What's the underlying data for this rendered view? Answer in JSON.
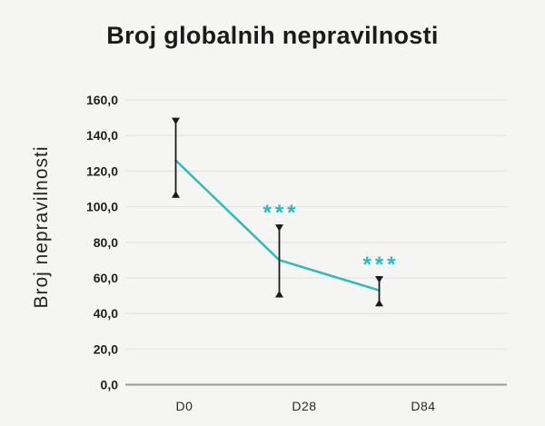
{
  "page": {
    "title": "Broj globalnih nepravilnosti"
  },
  "chart_data": {
    "type": "line",
    "title": "Broj globalnih nepravilnosti",
    "xlabel": "",
    "ylabel": "Broj nepravilnosti",
    "categories": [
      "D0",
      "D28",
      "D84"
    ],
    "series": [
      {
        "name": "Broj nepravilnosti",
        "values": [
          126,
          70,
          53
        ],
        "error_high": [
          150,
          90,
          61
        ],
        "error_low": [
          105,
          49,
          44
        ],
        "significance": [
          "",
          "***",
          "***"
        ]
      }
    ],
    "ylim": [
      0,
      160
    ],
    "ytick_step": 20,
    "yticks": [
      {
        "value": 0,
        "label": "0,0"
      },
      {
        "value": 20,
        "label": "20,0"
      },
      {
        "value": 40,
        "label": "40,0"
      },
      {
        "value": 60,
        "label": "60,0"
      },
      {
        "value": 80,
        "label": "80,0"
      },
      {
        "value": 100,
        "label": "100,0"
      },
      {
        "value": 120,
        "label": "120,0"
      },
      {
        "value": 140,
        "label": "140,0"
      },
      {
        "value": 160,
        "label": "160,0"
      }
    ],
    "grid": "horizontal",
    "legend": "none",
    "colors": {
      "line": "#2bbcb8",
      "significance": "#28bcbe",
      "error_bar": "#1b1b1b",
      "grid": "#e3e3e3",
      "axis": "#9a9a9a",
      "background": "#f5f5f4",
      "text": "#1c1c1c"
    }
  }
}
